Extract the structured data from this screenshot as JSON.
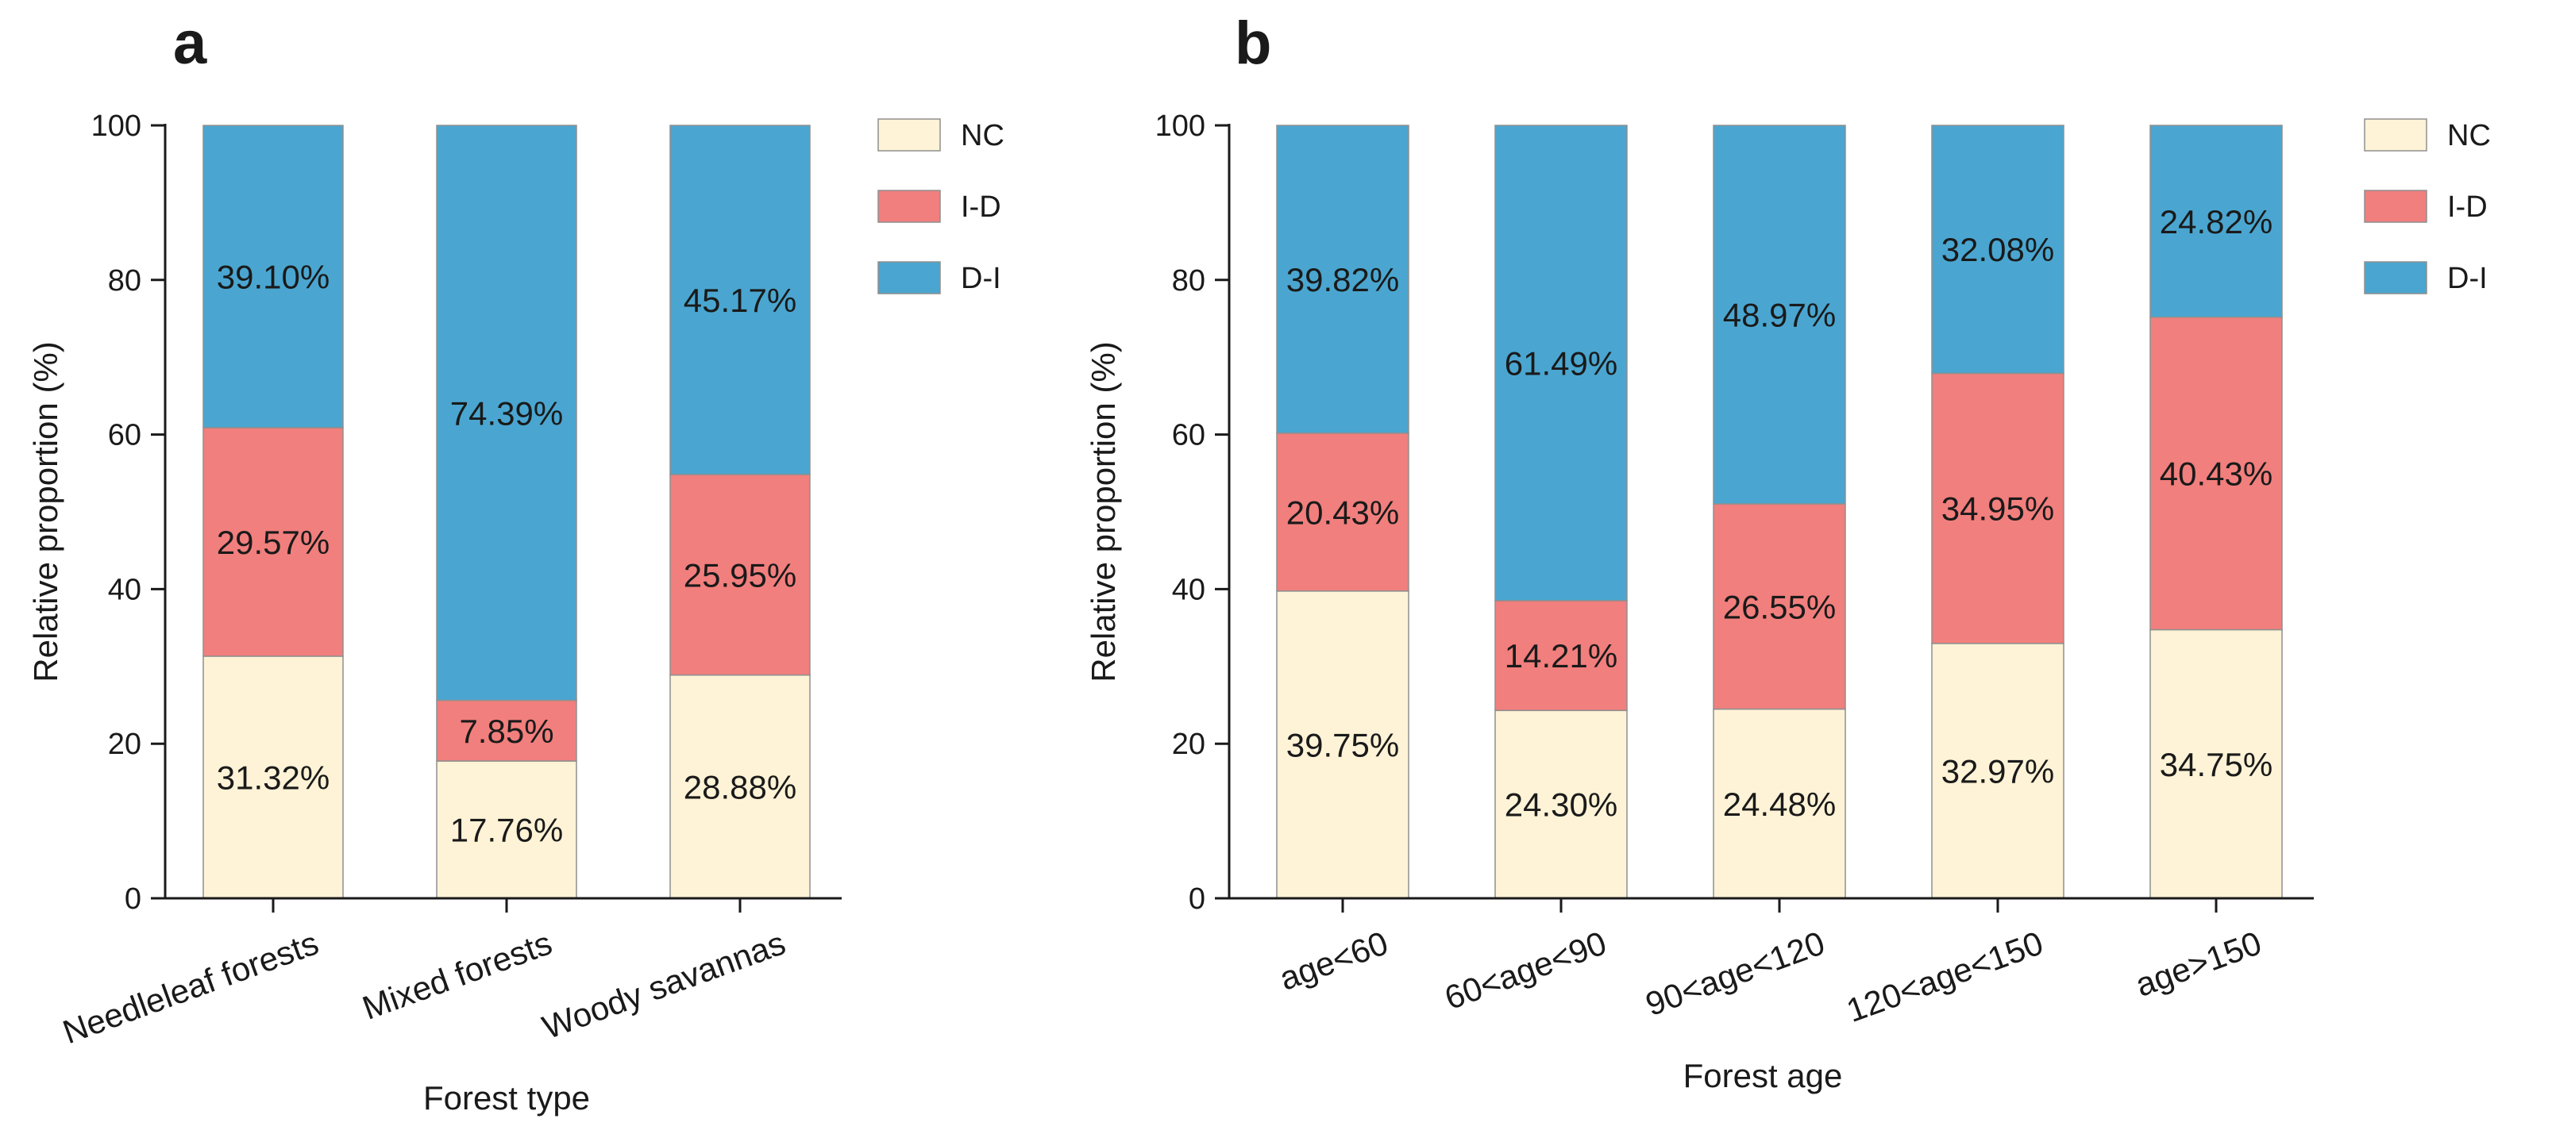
{
  "colors": {
    "NC": "#FEF3D6",
    "I-D": "#F17F7D",
    "D-I": "#4AA6D0",
    "axis": "#1a1a1a",
    "bar_edge": "#8f8f8f"
  },
  "legend": {
    "position": "top-right",
    "entries": [
      "NC",
      "I-D",
      "D-I"
    ]
  },
  "chart_data": [
    {
      "type": "bar",
      "stacked": true,
      "panel_label": "a",
      "xlabel": "Forest type",
      "ylabel": "Relative proportion (%)",
      "ylim": [
        0,
        100
      ],
      "yticks": [
        "0",
        "20",
        "40",
        "60",
        "80",
        "100"
      ],
      "grid": false,
      "legend": [
        "NC",
        "I-D",
        "D-I"
      ],
      "categories": [
        "Needleleaf forests",
        "Mixed forests",
        "Woody savannas"
      ],
      "series": [
        {
          "name": "NC",
          "values": [
            31.32,
            17.76,
            28.88
          ],
          "labels": [
            "31.32%",
            "17.76%",
            "28.88%"
          ]
        },
        {
          "name": "I-D",
          "values": [
            29.57,
            7.85,
            25.95
          ],
          "labels": [
            "29.57%",
            "7.85%",
            "25.95%"
          ]
        },
        {
          "name": "D-I",
          "values": [
            39.1,
            74.39,
            45.17
          ],
          "labels": [
            "39.10%",
            "74.39%",
            "45.17%"
          ]
        }
      ]
    },
    {
      "type": "bar",
      "stacked": true,
      "panel_label": "b",
      "xlabel": "Forest age",
      "ylabel": "Relative proportion (%)",
      "ylim": [
        0,
        100
      ],
      "yticks": [
        "0",
        "20",
        "40",
        "60",
        "80",
        "100"
      ],
      "grid": false,
      "legend": [
        "NC",
        "I-D",
        "D-I"
      ],
      "categories": [
        "age<60",
        "60<age<90",
        "90<age<120",
        "120<age<150",
        "age>150"
      ],
      "series": [
        {
          "name": "NC",
          "values": [
            39.75,
            24.3,
            24.48,
            32.97,
            34.75
          ],
          "labels": [
            "39.75%",
            "24.30%",
            "24.48%",
            "32.97%",
            "34.75%"
          ]
        },
        {
          "name": "I-D",
          "values": [
            20.43,
            14.21,
            26.55,
            34.95,
            40.43
          ],
          "labels": [
            "20.43%",
            "14.21%",
            "26.55%",
            "34.95%",
            "40.43%"
          ]
        },
        {
          "name": "D-I",
          "values": [
            39.82,
            61.49,
            48.97,
            32.08,
            24.82
          ],
          "labels": [
            "39.82%",
            "61.49%",
            "48.97%",
            "32.08%",
            "24.82%"
          ]
        }
      ]
    }
  ]
}
